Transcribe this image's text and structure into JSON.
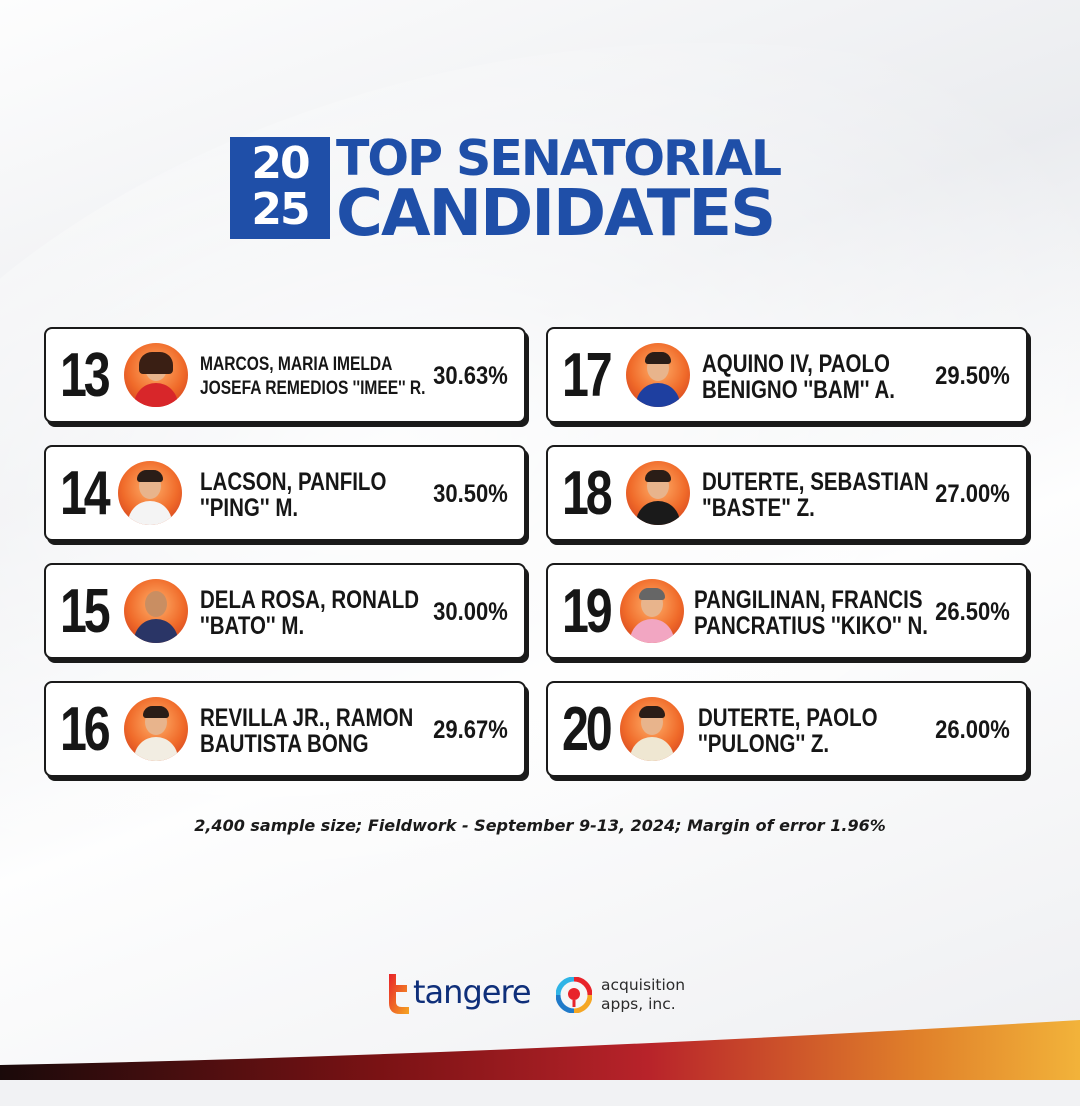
{
  "header": {
    "year_top": "20",
    "year_bottom": "25",
    "title_line1": "TOP SENATORIAL",
    "title_line2": "CANDIDATES"
  },
  "colors": {
    "brand_blue": "#1f4fa8",
    "card_border": "#1a1a1a",
    "avatar_bg": "#f06b2a"
  },
  "candidates_left": [
    {
      "rank": "13",
      "name_line1": "MARCOS, MARIA IMELDA",
      "name_line2": "JOSEFA REMEDIOS ''IMEE'' R.",
      "percent": "30.63%"
    },
    {
      "rank": "14",
      "name_line1": "LACSON, PANFILO",
      "name_line2": "''PING'' M.",
      "percent": "30.50%"
    },
    {
      "rank": "15",
      "name_line1": "DELA ROSA, RONALD",
      "name_line2": "''BATO'' M.",
      "percent": "30.00%"
    },
    {
      "rank": "16",
      "name_line1": "REVILLA JR., RAMON",
      "name_line2": "BAUTISTA BONG",
      "percent": "29.67%"
    }
  ],
  "candidates_right": [
    {
      "rank": "17",
      "name_line1": "AQUINO IV, PAOLO",
      "name_line2": "BENIGNO ''BAM'' A.",
      "percent": "29.50%"
    },
    {
      "rank": "18",
      "name_line1": "DUTERTE, SEBASTIAN",
      "name_line2": "\"BASTE\" Z.",
      "percent": "27.00%"
    },
    {
      "rank": "19",
      "name_line1": "PANGILINAN, FRANCIS",
      "name_line2": "PANCRATIUS ''KIKO'' N.",
      "percent": "26.50%"
    },
    {
      "rank": "20",
      "name_line1": "DUTERTE, PAOLO",
      "name_line2": "''PULONG'' Z.",
      "percent": "26.00%"
    }
  ],
  "footnote": "2,400 sample size; Fieldwork - September 9-13, 2024; Margin of error 1.96%",
  "logos": {
    "tangere": "tangere",
    "acquisition_line1": "acquisition",
    "acquisition_line2": "apps, inc."
  }
}
